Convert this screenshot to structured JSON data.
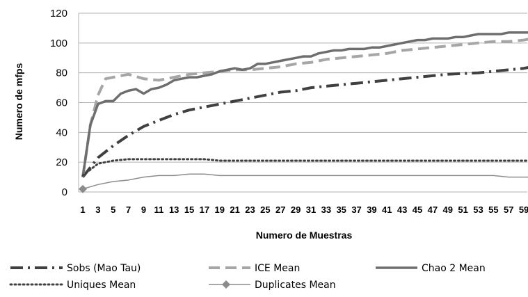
{
  "chart_data": {
    "type": "line",
    "xlabel": "Numero de Muestras",
    "ylabel": "Numero de mfps",
    "ylim": [
      0,
      120
    ],
    "yticks": [
      0,
      20,
      40,
      60,
      80,
      100,
      120
    ],
    "x_range": [
      1,
      60
    ],
    "x_tick_labels": [
      "1",
      "3",
      "5",
      "7",
      "9",
      "11",
      "13",
      "15",
      "17",
      "19",
      "21",
      "23",
      "25",
      "27",
      "29",
      "31",
      "33",
      "35",
      "37",
      "39",
      "41",
      "43",
      "45",
      "47",
      "49",
      "51",
      "53",
      "55",
      "57",
      "59"
    ],
    "grid": "horizontal",
    "legend_position": "bottom",
    "series": [
      {
        "name": "Sobs (Mao Tau)",
        "color": "#404040",
        "style": "dash-dot",
        "points": [
          [
            1,
            10
          ],
          [
            3,
            23
          ],
          [
            5,
            31
          ],
          [
            7,
            38
          ],
          [
            9,
            44
          ],
          [
            11,
            48
          ],
          [
            13,
            52
          ],
          [
            15,
            55
          ],
          [
            17,
            57
          ],
          [
            19,
            59
          ],
          [
            21,
            61
          ],
          [
            23,
            63
          ],
          [
            25,
            65
          ],
          [
            27,
            67
          ],
          [
            29,
            68
          ],
          [
            31,
            70
          ],
          [
            33,
            71
          ],
          [
            35,
            72
          ],
          [
            37,
            73
          ],
          [
            39,
            74
          ],
          [
            41,
            75
          ],
          [
            43,
            76
          ],
          [
            45,
            77
          ],
          [
            47,
            78
          ],
          [
            49,
            79
          ],
          [
            51,
            79.5
          ],
          [
            53,
            80
          ],
          [
            55,
            81
          ],
          [
            57,
            82
          ],
          [
            59,
            83
          ],
          [
            60,
            84
          ]
        ]
      },
      {
        "name": "ICE Mean",
        "color": "#a6a6a6",
        "style": "dashed",
        "points": [
          [
            1,
            10
          ],
          [
            2,
            45
          ],
          [
            3,
            65
          ],
          [
            4,
            76
          ],
          [
            5,
            77
          ],
          [
            7,
            79
          ],
          [
            9,
            76
          ],
          [
            11,
            75
          ],
          [
            13,
            77
          ],
          [
            15,
            79
          ],
          [
            17,
            80
          ],
          [
            19,
            81
          ],
          [
            21,
            82
          ],
          [
            23,
            82
          ],
          [
            25,
            83
          ],
          [
            27,
            84
          ],
          [
            29,
            86
          ],
          [
            31,
            87
          ],
          [
            33,
            89
          ],
          [
            35,
            90
          ],
          [
            37,
            91
          ],
          [
            39,
            92
          ],
          [
            41,
            93
          ],
          [
            43,
            95
          ],
          [
            45,
            96
          ],
          [
            47,
            97
          ],
          [
            49,
            98
          ],
          [
            51,
            99
          ],
          [
            53,
            100
          ],
          [
            55,
            101
          ],
          [
            57,
            101
          ],
          [
            59,
            102
          ],
          [
            60,
            103
          ]
        ]
      },
      {
        "name": "Chao 2 Mean",
        "color": "#6e6e6e",
        "style": "solid",
        "points": [
          [
            1,
            10
          ],
          [
            2,
            45
          ],
          [
            3,
            59
          ],
          [
            4,
            61
          ],
          [
            5,
            61
          ],
          [
            6,
            66
          ],
          [
            7,
            68
          ],
          [
            8,
            69
          ],
          [
            9,
            66
          ],
          [
            10,
            69
          ],
          [
            11,
            70
          ],
          [
            12,
            72
          ],
          [
            13,
            75
          ],
          [
            14,
            76
          ],
          [
            15,
            77
          ],
          [
            16,
            77
          ],
          [
            17,
            78
          ],
          [
            18,
            79
          ],
          [
            19,
            81
          ],
          [
            20,
            82
          ],
          [
            21,
            83
          ],
          [
            22,
            82
          ],
          [
            23,
            83
          ],
          [
            24,
            86
          ],
          [
            25,
            86
          ],
          [
            26,
            87
          ],
          [
            27,
            88
          ],
          [
            28,
            89
          ],
          [
            29,
            90
          ],
          [
            30,
            91
          ],
          [
            31,
            91
          ],
          [
            32,
            93
          ],
          [
            33,
            94
          ],
          [
            34,
            95
          ],
          [
            35,
            95
          ],
          [
            36,
            96
          ],
          [
            37,
            96
          ],
          [
            38,
            96
          ],
          [
            39,
            97
          ],
          [
            40,
            97
          ],
          [
            41,
            98
          ],
          [
            42,
            99
          ],
          [
            43,
            100
          ],
          [
            44,
            101
          ],
          [
            45,
            102
          ],
          [
            46,
            102
          ],
          [
            47,
            103
          ],
          [
            48,
            103
          ],
          [
            49,
            103
          ],
          [
            50,
            104
          ],
          [
            51,
            104
          ],
          [
            52,
            105
          ],
          [
            53,
            106
          ],
          [
            54,
            106
          ],
          [
            55,
            106
          ],
          [
            56,
            106
          ],
          [
            57,
            107
          ],
          [
            58,
            107
          ],
          [
            59,
            107
          ],
          [
            60,
            107
          ]
        ]
      },
      {
        "name": "Uniques Mean",
        "color": "#404040",
        "style": "dotted",
        "points": [
          [
            1,
            11
          ],
          [
            3,
            19
          ],
          [
            5,
            21
          ],
          [
            7,
            22
          ],
          [
            9,
            22
          ],
          [
            11,
            22
          ],
          [
            13,
            22
          ],
          [
            15,
            22
          ],
          [
            17,
            22
          ],
          [
            19,
            21
          ],
          [
            21,
            21
          ],
          [
            23,
            21
          ],
          [
            25,
            21
          ],
          [
            27,
            21
          ],
          [
            29,
            21
          ],
          [
            31,
            21
          ],
          [
            33,
            21
          ],
          [
            35,
            21
          ],
          [
            37,
            21
          ],
          [
            39,
            21
          ],
          [
            41,
            21
          ],
          [
            43,
            21
          ],
          [
            45,
            21
          ],
          [
            47,
            21
          ],
          [
            49,
            21
          ],
          [
            51,
            21
          ],
          [
            53,
            21
          ],
          [
            55,
            21
          ],
          [
            57,
            21
          ],
          [
            59,
            21
          ],
          [
            60,
            21
          ]
        ]
      },
      {
        "name": "Duplicates Mean",
        "color": "#8c8c8c",
        "style": "solid-marker",
        "points": [
          [
            1,
            2
          ],
          [
            3,
            5
          ],
          [
            5,
            7
          ],
          [
            7,
            8
          ],
          [
            9,
            10
          ],
          [
            11,
            11
          ],
          [
            13,
            11
          ],
          [
            15,
            12
          ],
          [
            17,
            12
          ],
          [
            19,
            11
          ],
          [
            21,
            11
          ],
          [
            23,
            11
          ],
          [
            25,
            11
          ],
          [
            27,
            11
          ],
          [
            29,
            11
          ],
          [
            31,
            11
          ],
          [
            33,
            11
          ],
          [
            35,
            11
          ],
          [
            37,
            11
          ],
          [
            39,
            11
          ],
          [
            41,
            11
          ],
          [
            43,
            11
          ],
          [
            45,
            11
          ],
          [
            47,
            11
          ],
          [
            49,
            11
          ],
          [
            51,
            11
          ],
          [
            53,
            11
          ],
          [
            55,
            11
          ],
          [
            57,
            10
          ],
          [
            59,
            10
          ],
          [
            60,
            10
          ]
        ]
      }
    ]
  }
}
